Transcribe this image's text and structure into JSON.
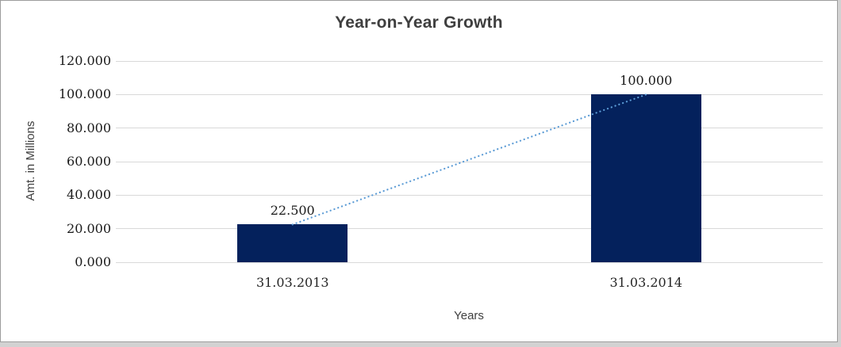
{
  "chart_data": {
    "type": "bar",
    "title": "Year-on-Year Growth",
    "xlabel": "Years",
    "ylabel": "Amt. in Millions",
    "categories": [
      "31.03.2013",
      "31.03.2014"
    ],
    "values": [
      22.5,
      100.0
    ],
    "data_labels": [
      "22.500",
      "100.000"
    ],
    "ylim": [
      0,
      120
    ],
    "ytick_step": 20,
    "ytick_labels": [
      "0.000",
      "20.000",
      "40.000",
      "60.000",
      "80.000",
      "100.000",
      "120.000"
    ],
    "grid": true,
    "legend": false,
    "bar_color": "#04215c",
    "gridline_color": "#d9d9d9",
    "trendline": {
      "type": "linear",
      "style": "dotted",
      "color": "#5b9bd5",
      "from_value": 22.5,
      "to_value": 100.0
    }
  }
}
